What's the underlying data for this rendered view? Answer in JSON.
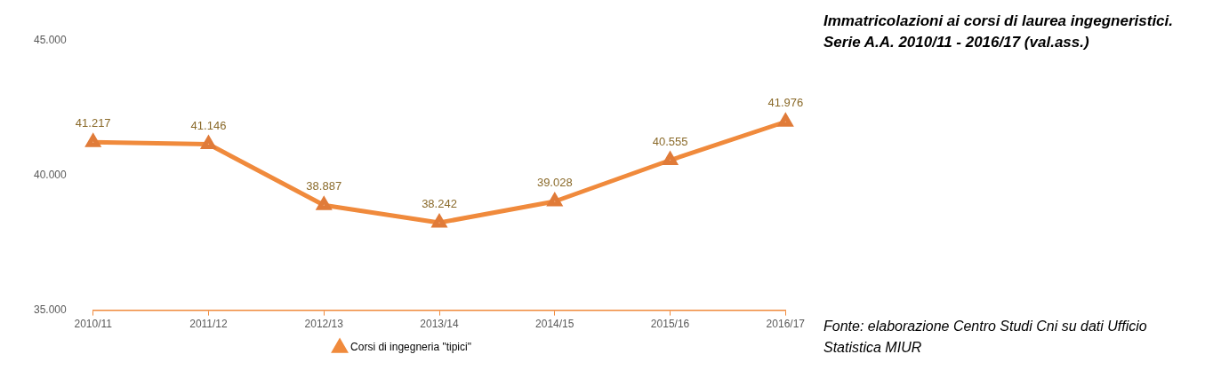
{
  "chart_data": {
    "type": "line",
    "title": "Immatricolazioni ai corsi di laurea ingegneristici. Serie A.A. 2010/11 - 2016/17 (val.ass.)",
    "categories": [
      "2010/11",
      "2011/12",
      "2012/13",
      "2013/14",
      "2014/15",
      "2015/16",
      "2016/17"
    ],
    "series": [
      {
        "name": "Corsi di ingegneria \"tipici\"",
        "color": "#f08a3c",
        "values": [
          41217,
          41146,
          38887,
          38242,
          39028,
          40555,
          41976
        ],
        "value_labels": [
          "41.217",
          "41.146",
          "38.887",
          "38.242",
          "39.028",
          "40.555",
          "41.976"
        ]
      }
    ],
    "ylim": [
      35000,
      45000
    ],
    "yticks": [
      {
        "value": 35000,
        "label": "35.000"
      },
      {
        "value": 40000,
        "label": "40.000"
      },
      {
        "value": 45000,
        "label": "45.000"
      }
    ],
    "grid": false,
    "legend": "bottom",
    "marker": "triangle",
    "line_style": "solid",
    "annotations": [
      "Fonte: elaborazione Centro Studi Cni su dati Ufficio Statistica MIUR"
    ]
  }
}
